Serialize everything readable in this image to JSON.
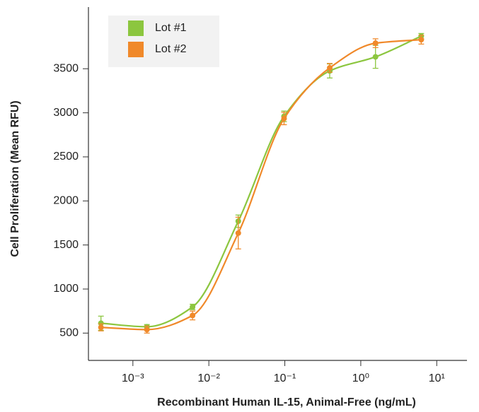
{
  "chart_data": {
    "type": "scatter",
    "x_label": "Recombinant Human IL-15, Animal-Free (ng/mL)",
    "y_label": "Cell Proliferation (Mean RFU)",
    "x": [
      0.00038,
      0.00153,
      0.0061,
      0.0244,
      0.0977,
      0.39,
      1.5625,
      6.25
    ],
    "series": [
      {
        "name": "Lot #1",
        "color": "#8cc63f",
        "values": [
          612,
          572,
          797,
          1770,
          2960,
          3475,
          3635,
          3870
        ],
        "errors": [
          80,
          25,
          30,
          70,
          60,
          80,
          130,
          30
        ]
      },
      {
        "name": "Lot #2",
        "color": "#f0892a",
        "values": [
          565,
          540,
          700,
          1635,
          2935,
          3510,
          3790,
          3830
        ],
        "errors": [
          40,
          40,
          50,
          180,
          70,
          50,
          50,
          50
        ]
      }
    ],
    "xscale": "log",
    "xlim": [
      0.00026,
      25
    ],
    "xticks": [
      {
        "value": 0.001,
        "label": "10⁻³"
      },
      {
        "value": 0.01,
        "label": "10⁻²"
      },
      {
        "value": 0.1,
        "label": "10⁻¹"
      },
      {
        "value": 1,
        "label": "10⁰"
      },
      {
        "value": 10,
        "label": "10¹"
      }
    ],
    "ylim": [
      190,
      4200
    ],
    "yticks": [
      500,
      1000,
      1500,
      2000,
      2500,
      3000,
      3500
    ],
    "grid": false,
    "legend": "upper left"
  }
}
